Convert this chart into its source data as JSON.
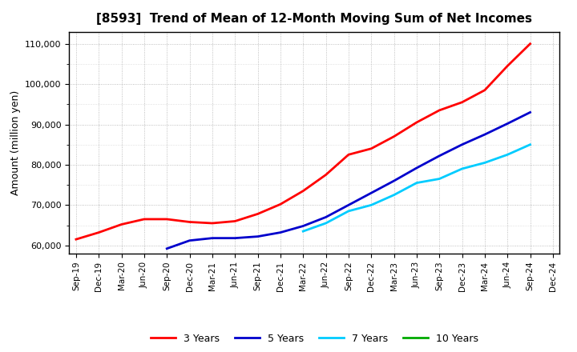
{
  "title": "[8593]  Trend of Mean of 12-Month Moving Sum of Net Incomes",
  "ylabel": "Amount (million yen)",
  "background_color": "#ffffff",
  "plot_bg_color": "#ffffff",
  "grid_color": "#999999",
  "ylim": [
    58000,
    113000
  ],
  "yticks": [
    60000,
    70000,
    80000,
    90000,
    100000,
    110000
  ],
  "series": {
    "3 Years": {
      "color": "#ff0000",
      "data": [
        [
          "Sep-19",
          61500
        ],
        [
          "Dec-19",
          63200
        ],
        [
          "Mar-20",
          65200
        ],
        [
          "Jun-20",
          66500
        ],
        [
          "Sep-20",
          66500
        ],
        [
          "Dec-20",
          65800
        ],
        [
          "Mar-21",
          65500
        ],
        [
          "Jun-21",
          66000
        ],
        [
          "Sep-21",
          67800
        ],
        [
          "Dec-21",
          70200
        ],
        [
          "Mar-22",
          73500
        ],
        [
          "Jun-22",
          77500
        ],
        [
          "Sep-22",
          82500
        ],
        [
          "Dec-22",
          84000
        ],
        [
          "Mar-23",
          87000
        ],
        [
          "Jun-23",
          90500
        ],
        [
          "Sep-23",
          93500
        ],
        [
          "Dec-23",
          95500
        ],
        [
          "Mar-24",
          98500
        ],
        [
          "Jun-24",
          104500
        ],
        [
          "Sep-24",
          110000
        ]
      ]
    },
    "5 Years": {
      "color": "#0000cc",
      "data": [
        [
          "Sep-20",
          59200
        ],
        [
          "Dec-20",
          61200
        ],
        [
          "Mar-21",
          61800
        ],
        [
          "Jun-21",
          61800
        ],
        [
          "Sep-21",
          62200
        ],
        [
          "Dec-21",
          63200
        ],
        [
          "Mar-22",
          64800
        ],
        [
          "Jun-22",
          67000
        ],
        [
          "Sep-22",
          70000
        ],
        [
          "Dec-22",
          73000
        ],
        [
          "Mar-23",
          76000
        ],
        [
          "Jun-23",
          79200
        ],
        [
          "Sep-23",
          82200
        ],
        [
          "Dec-23",
          85000
        ],
        [
          "Mar-24",
          87500
        ],
        [
          "Jun-24",
          90200
        ],
        [
          "Sep-24",
          93000
        ]
      ]
    },
    "7 Years": {
      "color": "#00ccff",
      "data": [
        [
          "Mar-22",
          63500
        ],
        [
          "Jun-22",
          65500
        ],
        [
          "Sep-22",
          68500
        ],
        [
          "Dec-22",
          70000
        ],
        [
          "Mar-23",
          72500
        ],
        [
          "Jun-23",
          75500
        ],
        [
          "Sep-23",
          76500
        ],
        [
          "Dec-23",
          79000
        ],
        [
          "Mar-24",
          80500
        ],
        [
          "Jun-24",
          82500
        ],
        [
          "Sep-24",
          85000
        ]
      ]
    },
    "10 Years": {
      "color": "#00aa00",
      "data": []
    }
  },
  "xtick_labels": [
    "Sep-19",
    "Dec-19",
    "Mar-20",
    "Jun-20",
    "Sep-20",
    "Dec-20",
    "Mar-21",
    "Jun-21",
    "Sep-21",
    "Dec-21",
    "Mar-22",
    "Jun-22",
    "Sep-22",
    "Dec-22",
    "Mar-23",
    "Jun-23",
    "Sep-23",
    "Dec-23",
    "Mar-24",
    "Jun-24",
    "Sep-24",
    "Dec-24"
  ],
  "legend_entries": [
    "3 Years",
    "5 Years",
    "7 Years",
    "10 Years"
  ],
  "legend_colors": [
    "#ff0000",
    "#0000cc",
    "#00ccff",
    "#00aa00"
  ]
}
